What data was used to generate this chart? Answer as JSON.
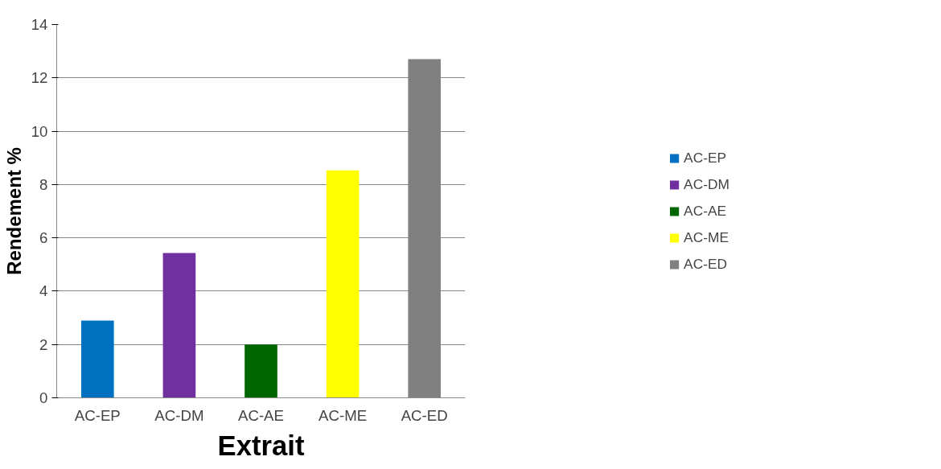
{
  "chart_data": {
    "type": "bar",
    "xlabel": "Extrait",
    "ylabel": "Rendement %",
    "categories": [
      "AC-EP",
      "AC-DM",
      "AC-AE",
      "AC-ME",
      "AC-ED"
    ],
    "series": [
      {
        "name": "AC-EP",
        "color": "#0070c0",
        "values": [
          2.9,
          null,
          null,
          null,
          null
        ]
      },
      {
        "name": "AC-DM",
        "color": "#7030a0",
        "values": [
          null,
          5.43,
          null,
          null,
          null
        ]
      },
      {
        "name": "AC-AE",
        "color": "#006600",
        "values": [
          null,
          null,
          2.0,
          null,
          null
        ]
      },
      {
        "name": "AC-ME",
        "color": "#ffff00",
        "values": [
          null,
          null,
          null,
          8.53,
          null
        ]
      },
      {
        "name": "AC-ED",
        "color": "#808080",
        "values": [
          null,
          null,
          null,
          null,
          12.7
        ]
      }
    ],
    "ylim": [
      0,
      14
    ],
    "yticks": [
      0,
      2,
      4,
      6,
      8,
      10,
      12,
      14
    ],
    "grid": "y",
    "legend": "right"
  }
}
